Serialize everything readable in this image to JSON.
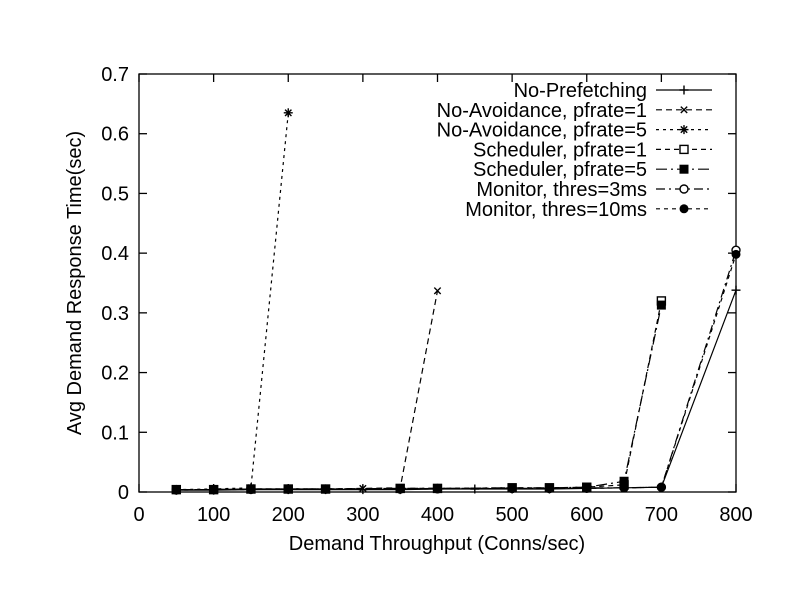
{
  "chart_data": {
    "type": "line",
    "title": "",
    "xlabel": "Demand Throughput (Conns/sec)",
    "ylabel": "Avg Demand Response Time(sec)",
    "xlim": [
      0,
      800
    ],
    "ylim": [
      0,
      0.7
    ],
    "x_tick_labels": [
      "0",
      "100",
      "200",
      "300",
      "400",
      "500",
      "600",
      "700",
      "800"
    ],
    "x_tick_values": [
      0,
      100,
      200,
      300,
      400,
      500,
      600,
      700,
      800
    ],
    "y_tick_labels": [
      "0",
      "0.1",
      "0.2",
      "0.3",
      "0.4",
      "0.5",
      "0.6",
      "0.7"
    ],
    "y_tick_values": [
      0,
      0.1,
      0.2,
      0.3,
      0.4,
      0.5,
      0.6,
      0.7
    ],
    "grid": false,
    "legend_position": "top-right-inside",
    "colors": {
      "foreground": "#000000",
      "background": "#ffffff"
    },
    "series": [
      {
        "name": "No-Prefetching",
        "marker": "plus",
        "dash": "solid",
        "points": [
          [
            50,
            0.003
          ],
          [
            100,
            0.003
          ],
          [
            150,
            0.004
          ],
          [
            200,
            0.004
          ],
          [
            250,
            0.004
          ],
          [
            300,
            0.004
          ],
          [
            350,
            0.004
          ],
          [
            400,
            0.005
          ],
          [
            450,
            0.005
          ],
          [
            500,
            0.005
          ],
          [
            550,
            0.005
          ],
          [
            600,
            0.006
          ],
          [
            650,
            0.007
          ],
          [
            700,
            0.008
          ],
          [
            800,
            0.338
          ]
        ]
      },
      {
        "name": "No-Avoidance, pfrate=1",
        "marker": "cross",
        "dash": "dash",
        "points": [
          [
            50,
            0.004
          ],
          [
            100,
            0.004
          ],
          [
            150,
            0.005
          ],
          [
            200,
            0.005
          ],
          [
            250,
            0.005
          ],
          [
            300,
            0.006
          ],
          [
            350,
            0.007
          ],
          [
            400,
            0.337
          ]
        ]
      },
      {
        "name": "No-Avoidance, pfrate=5",
        "marker": "asterisk",
        "dash": "shortdash",
        "points": [
          [
            50,
            0.004
          ],
          [
            100,
            0.005
          ],
          [
            150,
            0.007
          ],
          [
            200,
            0.635
          ]
        ]
      },
      {
        "name": "Scheduler, pfrate=1",
        "marker": "square-open",
        "dash": "dash2",
        "points": [
          [
            50,
            0.004
          ],
          [
            100,
            0.004
          ],
          [
            150,
            0.005
          ],
          [
            200,
            0.005
          ],
          [
            250,
            0.005
          ],
          [
            350,
            0.006
          ],
          [
            400,
            0.006
          ],
          [
            500,
            0.007
          ],
          [
            550,
            0.007
          ],
          [
            600,
            0.008
          ],
          [
            650,
            0.012
          ],
          [
            700,
            0.32
          ]
        ]
      },
      {
        "name": "Scheduler, pfrate=5",
        "marker": "square-filled",
        "dash": "dashdot",
        "points": [
          [
            50,
            0.004
          ],
          [
            100,
            0.004
          ],
          [
            150,
            0.005
          ],
          [
            200,
            0.005
          ],
          [
            250,
            0.005
          ],
          [
            350,
            0.006
          ],
          [
            400,
            0.006
          ],
          [
            500,
            0.007
          ],
          [
            550,
            0.007
          ],
          [
            600,
            0.008
          ],
          [
            650,
            0.018
          ],
          [
            700,
            0.313
          ]
        ]
      },
      {
        "name": "Monitor, thres=3ms",
        "marker": "circle-open",
        "dash": "dashdot2",
        "points": [
          [
            50,
            0.004
          ],
          [
            100,
            0.004
          ],
          [
            150,
            0.005
          ],
          [
            200,
            0.005
          ],
          [
            250,
            0.005
          ],
          [
            350,
            0.005
          ],
          [
            400,
            0.006
          ],
          [
            500,
            0.006
          ],
          [
            550,
            0.006
          ],
          [
            600,
            0.007
          ],
          [
            650,
            0.007
          ],
          [
            700,
            0.008
          ],
          [
            800,
            0.405
          ]
        ]
      },
      {
        "name": "Monitor, thres=10ms",
        "marker": "circle-filled",
        "dash": "shortdash2",
        "points": [
          [
            50,
            0.003
          ],
          [
            100,
            0.004
          ],
          [
            150,
            0.004
          ],
          [
            200,
            0.005
          ],
          [
            250,
            0.005
          ],
          [
            350,
            0.005
          ],
          [
            400,
            0.005
          ],
          [
            500,
            0.006
          ],
          [
            550,
            0.006
          ],
          [
            600,
            0.006
          ],
          [
            650,
            0.007
          ],
          [
            700,
            0.008
          ],
          [
            800,
            0.398
          ]
        ]
      }
    ]
  }
}
